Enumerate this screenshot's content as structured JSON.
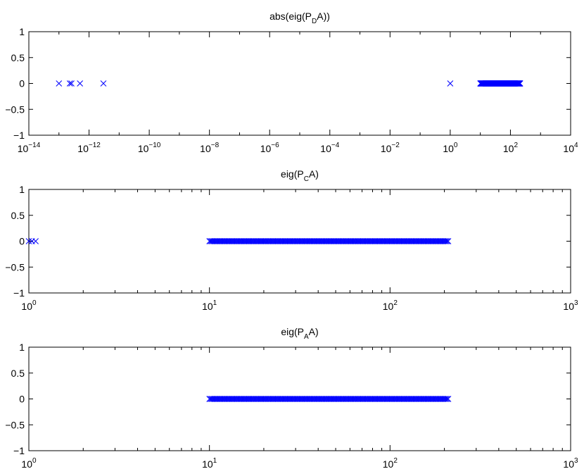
{
  "figure": {
    "background": "#ffffff",
    "marker_color": "#0000ff",
    "axes_color": "#000000"
  },
  "chart_data": [
    {
      "type": "scatter",
      "title": {
        "main": "abs(eig(P",
        "sub": "D",
        "tail": "A))"
      },
      "xscale": "log",
      "xlim": [
        1e-14,
        10000
      ],
      "ylim": [
        -1,
        1
      ],
      "x_ticks": [
        {
          "value": 1e-14,
          "base": "10",
          "exp": "−14"
        },
        {
          "value": 1e-12,
          "base": "10",
          "exp": "−12"
        },
        {
          "value": 1e-10,
          "base": "10",
          "exp": "−10"
        },
        {
          "value": 1e-08,
          "base": "10",
          "exp": "−8"
        },
        {
          "value": 1e-06,
          "base": "10",
          "exp": "−6"
        },
        {
          "value": 0.0001,
          "base": "10",
          "exp": "−4"
        },
        {
          "value": 0.01,
          "base": "10",
          "exp": "−2"
        },
        {
          "value": 1,
          "base": "10",
          "exp": "0"
        },
        {
          "value": 100,
          "base": "10",
          "exp": "2"
        },
        {
          "value": 10000,
          "base": "10",
          "exp": "4"
        }
      ],
      "y_ticks": [
        {
          "value": -1,
          "label": "−1"
        },
        {
          "value": -0.5,
          "label": "−0.5"
        },
        {
          "value": 0,
          "label": "0"
        },
        {
          "value": 0.5,
          "label": "0.5"
        },
        {
          "value": 1,
          "label": "1"
        }
      ],
      "points": [
        {
          "x": 1e-13,
          "y": 0
        },
        {
          "x": 2.3e-13,
          "y": 0
        },
        {
          "x": 2.6e-13,
          "y": 0
        },
        {
          "x": 5e-13,
          "y": 0
        },
        {
          "x": 3e-12,
          "y": 0
        },
        {
          "x": 1,
          "y": 0
        }
      ],
      "dense_range": {
        "from": 10,
        "to": 210,
        "y": 0,
        "count": 200
      },
      "grid": false,
      "legend": "none",
      "marker": "x"
    },
    {
      "type": "scatter",
      "title": {
        "main": "eig(P",
        "sub": "C",
        "tail": "A)"
      },
      "xscale": "log",
      "xlim": [
        1,
        1000
      ],
      "ylim": [
        -1,
        1
      ],
      "x_ticks": [
        {
          "value": 1,
          "base": "10",
          "exp": "0"
        },
        {
          "value": 10,
          "base": "10",
          "exp": "1"
        },
        {
          "value": 100,
          "base": "10",
          "exp": "2"
        },
        {
          "value": 1000,
          "base": "10",
          "exp": "3"
        }
      ],
      "y_ticks": [
        {
          "value": -1,
          "label": "−1"
        },
        {
          "value": -0.5,
          "label": "−0.5"
        },
        {
          "value": 0,
          "label": "0"
        },
        {
          "value": 0.5,
          "label": "0.5"
        },
        {
          "value": 1,
          "label": "1"
        }
      ],
      "points": [
        {
          "x": 1.0,
          "y": 0
        },
        {
          "x": 1.04,
          "y": 0
        },
        {
          "x": 1.09,
          "y": 0
        }
      ],
      "dense_range": {
        "from": 10,
        "to": 210,
        "y": 0,
        "count": 200
      },
      "grid": false,
      "legend": "none",
      "marker": "x"
    },
    {
      "type": "scatter",
      "title": {
        "main": "eig(P",
        "sub": "A",
        "tail": "A)"
      },
      "xscale": "log",
      "xlim": [
        1,
        1000
      ],
      "ylim": [
        -1,
        1
      ],
      "x_ticks": [
        {
          "value": 1,
          "base": "10",
          "exp": "0"
        },
        {
          "value": 10,
          "base": "10",
          "exp": "1"
        },
        {
          "value": 100,
          "base": "10",
          "exp": "2"
        },
        {
          "value": 1000,
          "base": "10",
          "exp": "3"
        }
      ],
      "y_ticks": [
        {
          "value": -1,
          "label": "−1"
        },
        {
          "value": -0.5,
          "label": "−0.5"
        },
        {
          "value": 0,
          "label": "0"
        },
        {
          "value": 0.5,
          "label": "0.5"
        },
        {
          "value": 1,
          "label": "1"
        }
      ],
      "points": [],
      "dense_range": {
        "from": 10,
        "to": 210,
        "y": 0,
        "count": 200
      },
      "grid": false,
      "legend": "none",
      "marker": "x"
    }
  ]
}
